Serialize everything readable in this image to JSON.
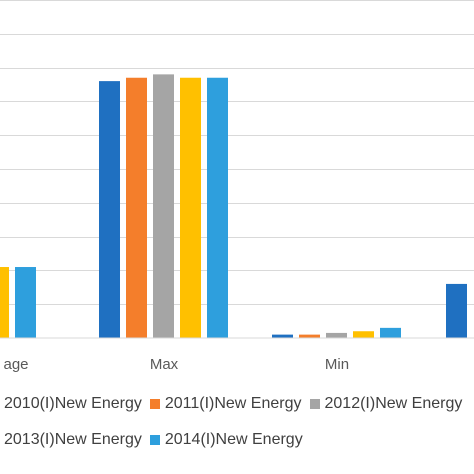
{
  "chart_data": {
    "type": "bar",
    "categories": [
      "Average",
      "Max",
      "Min",
      ""
    ],
    "category_labels_visible": [
      "age",
      "Max",
      "Min",
      ""
    ],
    "series": [
      {
        "name": "2010(I)New Energy",
        "color": "#1f70c1",
        "values": [
          null,
          76,
          1,
          16
        ]
      },
      {
        "name": "2011(I)New Energy",
        "color": "#f47e2b",
        "values": [
          null,
          77,
          1,
          null
        ]
      },
      {
        "name": "2012(I)New Energy",
        "color": "#a5a5a5",
        "values": [
          null,
          78,
          1.5,
          null
        ]
      },
      {
        "name": "2013(I)New Energy",
        "color": "#ffc000",
        "values": [
          21,
          77,
          2,
          null
        ]
      },
      {
        "name": "2014(I)New Energy",
        "color": "#2e9fdd",
        "values": [
          21,
          77,
          3,
          null
        ]
      }
    ],
    "ylim": [
      0,
      100
    ],
    "grid": true,
    "legend_position": "bottom"
  }
}
